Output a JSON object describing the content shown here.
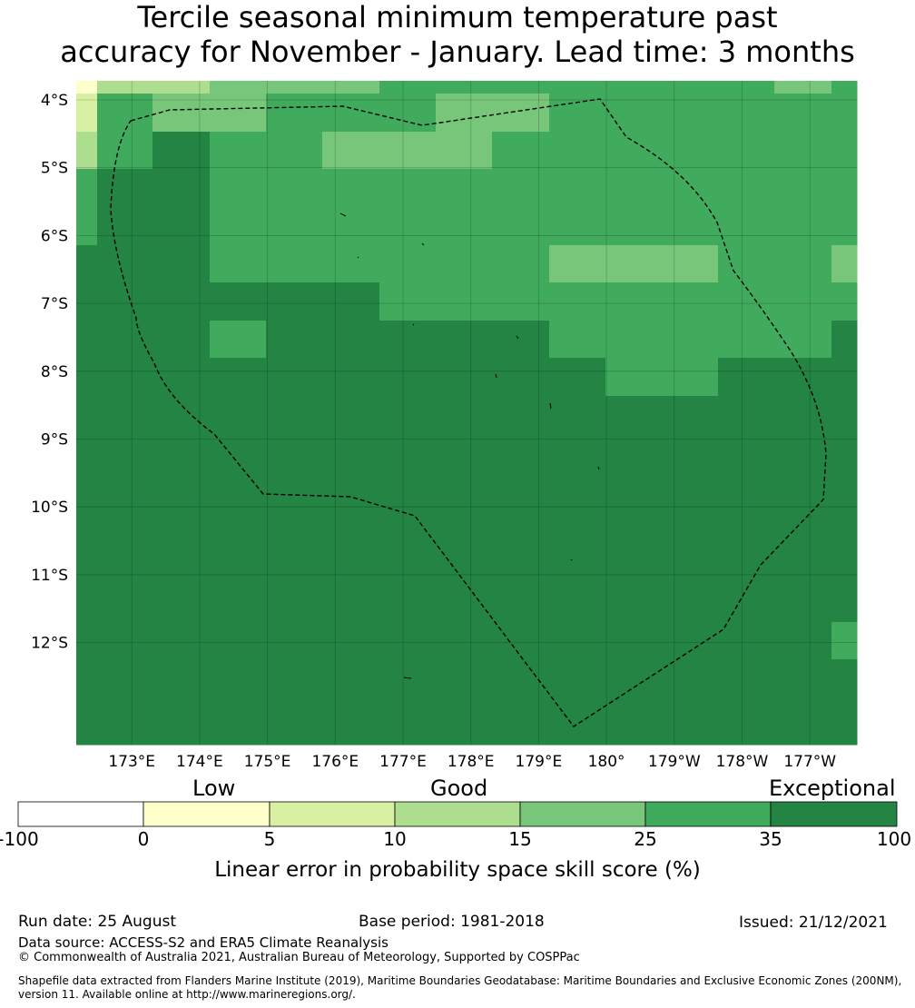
{
  "title_line1": "Tercile seasonal minimum temperature past",
  "title_line2": "accuracy for November - January. Lead time: 3 months",
  "map": {
    "lon_labels": [
      "173°E",
      "174°E",
      "175°E",
      "176°E",
      "177°E",
      "178°E",
      "179°E",
      "180°",
      "179°W",
      "178°W",
      "177°W"
    ],
    "lat_labels": [
      "4°S",
      "5°S",
      "6°S",
      "7°S",
      "8°S",
      "9°S",
      "10°S",
      "11°S",
      "12°S"
    ],
    "grid_levels": [
      [
        1,
        3,
        3,
        4,
        4,
        4,
        5,
        5,
        5,
        5,
        5,
        5,
        5,
        4,
        5,
        6
      ],
      [
        2,
        5,
        4,
        4,
        5,
        5,
        5,
        4,
        4,
        5,
        5,
        5,
        5,
        5,
        5,
        5
      ],
      [
        3,
        5,
        6,
        5,
        5,
        4,
        4,
        4,
        5,
        5,
        5,
        5,
        5,
        5,
        5,
        5
      ],
      [
        5,
        6,
        6,
        5,
        5,
        5,
        5,
        5,
        5,
        5,
        5,
        5,
        5,
        5,
        5,
        5
      ],
      [
        5,
        6,
        6,
        5,
        5,
        5,
        5,
        5,
        5,
        5,
        5,
        5,
        5,
        5,
        5,
        5
      ],
      [
        6,
        6,
        6,
        5,
        5,
        5,
        5,
        5,
        5,
        4,
        4,
        4,
        5,
        5,
        4,
        5
      ],
      [
        6,
        6,
        6,
        6,
        6,
        6,
        5,
        5,
        5,
        5,
        5,
        5,
        5,
        5,
        5,
        5
      ],
      [
        6,
        6,
        6,
        5,
        6,
        6,
        6,
        6,
        6,
        5,
        5,
        5,
        5,
        5,
        7,
        6
      ],
      [
        6,
        6,
        6,
        6,
        6,
        6,
        6,
        6,
        6,
        7,
        5,
        5,
        7,
        7,
        7,
        6
      ],
      [
        7,
        6,
        6,
        6,
        6,
        6,
        6,
        6,
        6,
        6,
        6,
        6,
        7,
        7,
        7,
        7
      ],
      [
        7,
        7,
        7,
        7,
        7,
        6,
        6,
        7,
        7,
        7,
        7,
        7,
        7,
        7,
        7,
        6
      ],
      [
        7,
        7,
        7,
        7,
        6,
        6,
        7,
        7,
        7,
        7,
        7,
        6,
        7,
        7,
        6,
        6
      ],
      [
        7,
        7,
        7,
        7,
        7,
        7,
        7,
        7,
        7,
        7,
        7,
        6,
        7,
        7,
        6,
        6
      ],
      [
        7,
        7,
        7,
        7,
        7,
        7,
        6,
        7,
        7,
        7,
        7,
        7,
        6,
        7,
        6,
        6
      ],
      [
        7,
        7,
        7,
        7,
        7,
        7,
        7,
        7,
        7,
        6,
        6,
        6,
        6,
        6,
        6,
        5
      ],
      [
        7,
        6,
        7,
        7,
        7,
        7,
        7,
        7,
        7,
        6,
        6,
        6,
        6,
        6,
        5,
        5
      ],
      [
        6,
        6,
        7,
        7,
        7,
        7,
        7,
        7,
        7,
        6,
        6,
        6,
        6,
        6,
        6,
        6
      ],
      [
        7,
        6,
        7,
        7,
        7,
        7,
        7,
        7,
        7,
        6,
        6,
        6,
        6,
        6,
        7,
        6
      ],
      [
        6,
        7,
        7,
        6,
        7,
        7,
        6,
        6,
        7,
        6,
        7,
        6,
        6,
        6,
        6,
        6
      ],
      [
        6,
        6,
        6,
        6,
        6,
        6,
        6,
        6,
        6,
        6,
        6,
        6,
        6,
        6,
        6,
        6
      ],
      [
        6,
        6,
        6,
        6,
        6,
        6,
        6,
        6,
        6,
        6,
        6,
        6,
        6,
        6,
        6,
        6
      ]
    ]
  },
  "colorbar": {
    "headings": [
      "Low",
      "Good",
      "Exceptional"
    ],
    "ticks": [
      "-100",
      "0",
      "5",
      "10",
      "15",
      "25",
      "35",
      "100"
    ],
    "colors": [
      "#ffffff",
      "#ffffcc",
      "#d9f0a3",
      "#addd8e",
      "#78c679",
      "#41ab5d",
      "#238443"
    ],
    "caption": "Linear error in probability space skill score (%)"
  },
  "footer": {
    "run_date": "Run date: 25 August",
    "base_period": "Base period: 1981-2018",
    "issued": "Issued: 21/12/2021",
    "data_source": "Data source: ACCESS-S2 and ERA5 Climate Reanalysis",
    "copyright": "© Commonwealth of Australia 2021, Australian Bureau of Meteorology, Supported by COSPPac",
    "shapefile_line1": "Shapefile data extracted from Flanders Marine Institute (2019), Maritime Boundaries Geodatabase: Maritime Boundaries and Exclusive Economic Zones (200NM),",
    "shapefile_line2": "version 11. Available online at http://www.marineregions.org/."
  }
}
